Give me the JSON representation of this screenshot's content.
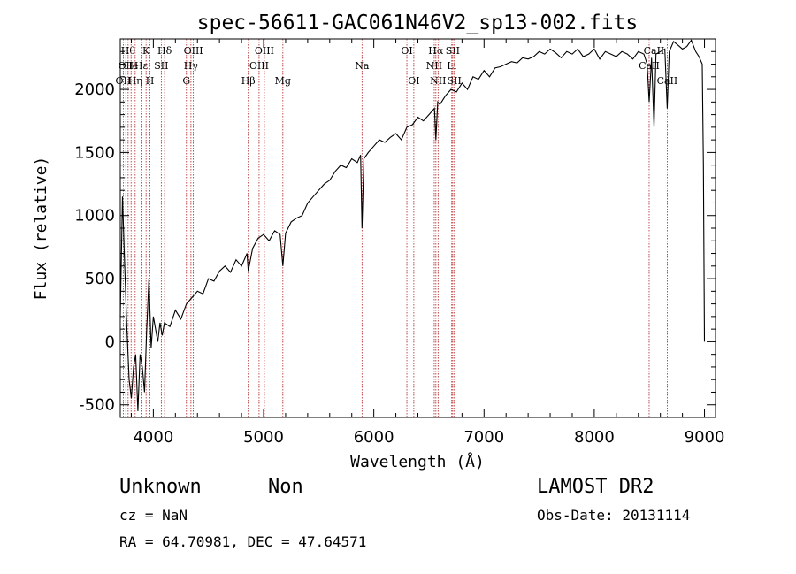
{
  "chart_data": {
    "type": "line",
    "title": "spec-56611-GAC061N46V2_sp13-002.fits",
    "xlabel": "Wavelength (Å)",
    "ylabel": "Flux (relative)",
    "xlim": [
      3700,
      9100
    ],
    "ylim": [
      -600,
      2400
    ],
    "xticks": [
      4000,
      5000,
      6000,
      7000,
      8000,
      9000
    ],
    "yticks": [
      -500,
      0,
      500,
      1000,
      1500,
      2000
    ],
    "series": [
      {
        "color": "#000000",
        "x": [
          3700,
          3720,
          3740,
          3760,
          3780,
          3800,
          3820,
          3840,
          3860,
          3880,
          3900,
          3920,
          3940,
          3960,
          3980,
          4000,
          4020,
          4040,
          4060,
          4080,
          4100,
          4150,
          4200,
          4250,
          4300,
          4350,
          4400,
          4450,
          4500,
          4550,
          4600,
          4650,
          4700,
          4750,
          4800,
          4850,
          4861,
          4900,
          4950,
          5000,
          5050,
          5100,
          5150,
          5175,
          5200,
          5250,
          5300,
          5350,
          5400,
          5450,
          5500,
          5550,
          5600,
          5650,
          5700,
          5750,
          5800,
          5850,
          5880,
          5893,
          5910,
          5950,
          6000,
          6050,
          6100,
          6150,
          6200,
          6250,
          6300,
          6350,
          6400,
          6450,
          6500,
          6550,
          6563,
          6580,
          6600,
          6650,
          6700,
          6750,
          6800,
          6850,
          6900,
          6950,
          7000,
          7050,
          7100,
          7150,
          7200,
          7250,
          7300,
          7350,
          7400,
          7450,
          7500,
          7550,
          7600,
          7650,
          7700,
          7750,
          7800,
          7850,
          7900,
          7950,
          8000,
          8050,
          8100,
          8150,
          8200,
          8250,
          8300,
          8350,
          8400,
          8450,
          8480,
          8498,
          8520,
          8542,
          8560,
          8600,
          8640,
          8662,
          8680,
          8720,
          8760,
          8800,
          8840,
          8880,
          8920,
          8950,
          8980,
          8990,
          9000
        ],
        "y": [
          200,
          1150,
          600,
          100,
          -300,
          -450,
          -200,
          -100,
          -550,
          -100,
          -200,
          -400,
          100,
          500,
          -50,
          200,
          100,
          0,
          150,
          50,
          150,
          120,
          250,
          180,
          300,
          350,
          400,
          380,
          500,
          480,
          560,
          600,
          550,
          650,
          600,
          700,
          560,
          740,
          820,
          850,
          800,
          880,
          850,
          600,
          860,
          950,
          980,
          1000,
          1100,
          1150,
          1200,
          1250,
          1280,
          1350,
          1400,
          1380,
          1450,
          1420,
          1480,
          900,
          1450,
          1500,
          1550,
          1600,
          1580,
          1620,
          1650,
          1600,
          1700,
          1720,
          1780,
          1750,
          1800,
          1850,
          1600,
          1900,
          1880,
          1950,
          2000,
          1980,
          2050,
          2000,
          2100,
          2080,
          2150,
          2100,
          2170,
          2180,
          2200,
          2220,
          2210,
          2250,
          2240,
          2260,
          2300,
          2280,
          2320,
          2290,
          2250,
          2300,
          2280,
          2320,
          2260,
          2280,
          2320,
          2240,
          2300,
          2280,
          2260,
          2300,
          2280,
          2240,
          2300,
          2280,
          2200,
          1900,
          2250,
          1700,
          2280,
          2300,
          2320,
          1850,
          2300,
          2380,
          2350,
          2320,
          2340,
          2390,
          2300,
          2260,
          2200,
          1400,
          0
        ]
      }
    ],
    "lines": [
      {
        "x": 3727,
        "label": "OII",
        "row": 2
      },
      {
        "x": 3750,
        "label": "OII",
        "row": 1
      },
      {
        "x": 3771,
        "label": "Hθ",
        "row": 0
      },
      {
        "x": 3798,
        "label": "He",
        "row": 1
      },
      {
        "x": 3835,
        "label": "Hη",
        "row": 2
      },
      {
        "x": 3889,
        "label": "Hε",
        "row": 1
      },
      {
        "x": 3934,
        "label": "K",
        "row": 0
      },
      {
        "x": 3969,
        "label": "H",
        "row": 2
      },
      {
        "x": 4072,
        "label": "SII",
        "row": 1
      },
      {
        "x": 4102,
        "label": "Hδ",
        "row": 0
      },
      {
        "x": 4300,
        "label": "G",
        "row": 2
      },
      {
        "x": 4341,
        "label": "Hγ",
        "row": 1
      },
      {
        "x": 4363,
        "label": "OIII",
        "row": 0
      },
      {
        "x": 4861,
        "label": "Hβ",
        "row": 2
      },
      {
        "x": 4959,
        "label": "OIII",
        "row": 1
      },
      {
        "x": 5007,
        "label": "OIII",
        "row": 0
      },
      {
        "x": 5175,
        "label": "Mg",
        "row": 2
      },
      {
        "x": 5893,
        "label": "Na",
        "row": 1
      },
      {
        "x": 6300,
        "label": "OI",
        "row": 0
      },
      {
        "x": 6363,
        "label": "OI",
        "row": 2
      },
      {
        "x": 6548,
        "label": "NII",
        "row": 1
      },
      {
        "x": 6563,
        "label": "Hα",
        "row": 0
      },
      {
        "x": 6583,
        "label": "NII",
        "row": 2
      },
      {
        "x": 6707,
        "label": "Li",
        "row": 1
      },
      {
        "x": 6716,
        "label": "SII",
        "row": 0
      },
      {
        "x": 6731,
        "label": "SII",
        "row": 2
      },
      {
        "x": 8498,
        "label": "CaII",
        "row": 1
      },
      {
        "x": 8542,
        "label": "CaII",
        "row": 0
      },
      {
        "x": 8662,
        "label": "CaII",
        "row": 2
      }
    ]
  },
  "info": {
    "object_class": "Unknown",
    "subclass": "Non",
    "survey": "LAMOST DR2",
    "redshift": "cz = NaN",
    "obs_date": "Obs-Date: 20131114",
    "coords": "RA =  64.70981, DEC =  47.64571"
  }
}
